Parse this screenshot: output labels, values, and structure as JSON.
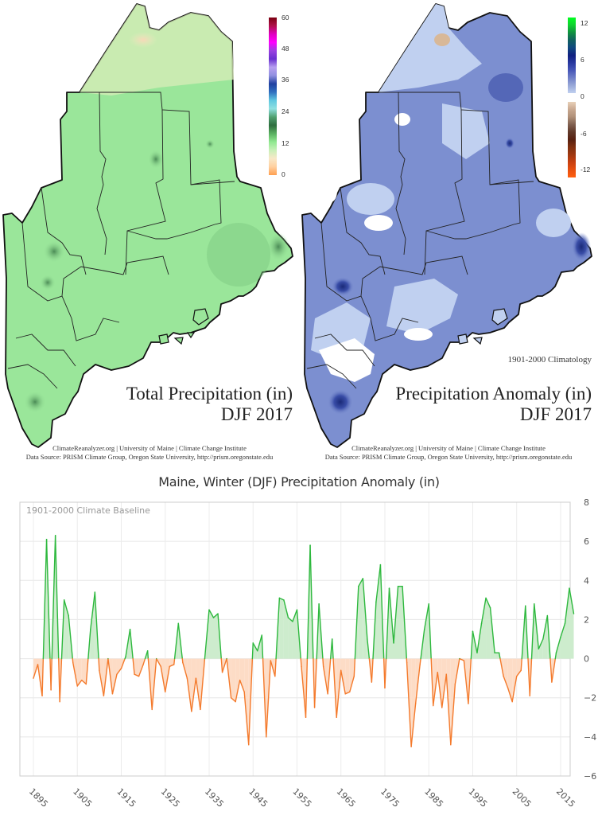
{
  "maps": {
    "left": {
      "title_line1": "Total Precipitation (in)",
      "title_line2": "DJF 2017",
      "colorbar": {
        "ticks": [
          "60",
          "48",
          "36",
          "24",
          "12",
          "0"
        ],
        "colors": [
          "#7a0010",
          "#b0104a",
          "#e000c0",
          "#ff00ff",
          "#9a40e0",
          "#6a30d0",
          "#b8a0f0",
          "#9090e0",
          "#2040a0",
          "#3070c0",
          "#60c8e0",
          "#90e0e0",
          "#50a070",
          "#2e6e40",
          "#5ab060",
          "#90e890",
          "#c8f0b8",
          "#f8e8c8",
          "#ffd0a0",
          "#ffa050"
        ]
      },
      "fill_color": "#9ae69a"
    },
    "right": {
      "title_line1": "Precipitation Anomaly (in)",
      "title_line2": "DJF 2017",
      "climatology_note": "1901-2000 Climatology",
      "colorbar": {
        "ticks": [
          "12",
          "6",
          "0",
          "-6",
          "-12"
        ],
        "pos_colors": [
          "#00ff20",
          "#10d030",
          "#109040",
          "#106060",
          "#104880",
          "#102080",
          "#2838a0",
          "#4858b8",
          "#7080c8",
          "#98a8d8",
          "#c0d0f0"
        ],
        "neg_colors": [
          "#e8d0b8",
          "#c8a890",
          "#b09078",
          "#806050",
          "#603828",
          "#582010",
          "#803010",
          "#a03810",
          "#c84010",
          "#e85010",
          "#ff6010"
        ]
      },
      "fill_color": "#7c8fd0"
    },
    "credit_line1": "ClimateReanalyzer.org | University of Maine | Climate Change Institute",
    "credit_line2": "Data Source: PRISM Climate Group, Oregon State University, http://prism.oregonstate.edu"
  },
  "chart_data": {
    "type": "area",
    "title": "Maine, Winter (DJF) Precipitation Anomaly (in)",
    "annotation": "1901-2000 Climate Baseline",
    "xlabel": "",
    "ylabel": "",
    "ylim": [
      -6,
      8
    ],
    "yticks": [
      8,
      6,
      4,
      2,
      0,
      -2,
      -4,
      -6
    ],
    "xticks": [
      1895,
      1905,
      1915,
      1925,
      1935,
      1945,
      1955,
      1965,
      1975,
      1985,
      1995,
      2005,
      2015
    ],
    "xlim": [
      1895,
      2017
    ],
    "grid": true,
    "positive_color": "#2db83d",
    "positive_fill": "#cdeccd",
    "negative_color": "#f47a2c",
    "negative_fill": "#fddcc6",
    "x_start": 1895,
    "values": [
      -1.0,
      -0.3,
      -1.9,
      6.1,
      -1.6,
      6.3,
      -2.2,
      3.0,
      2.2,
      -0.2,
      -1.4,
      -1.1,
      -1.3,
      1.5,
      3.4,
      -0.6,
      -1.9,
      0.0,
      -1.8,
      -0.8,
      -0.5,
      0.1,
      1.5,
      -0.8,
      -0.9,
      -0.3,
      0.4,
      -2.6,
      0.0,
      -0.4,
      -1.7,
      -0.4,
      -0.3,
      1.8,
      -0.2,
      -1.0,
      -2.7,
      -1.0,
      -2.6,
      0.0,
      2.5,
      2.1,
      2.3,
      -0.7,
      0.0,
      -2.0,
      -2.2,
      -1.1,
      -1.7,
      -4.4,
      0.8,
      0.4,
      1.2,
      -4.0,
      -0.1,
      -0.9,
      3.1,
      3.0,
      2.1,
      1.9,
      2.5,
      -0.4,
      -3.0,
      5.8,
      -2.5,
      2.8,
      -0.4,
      -1.8,
      1.0,
      -3.0,
      -0.6,
      -1.8,
      -1.7,
      -0.9,
      3.7,
      4.1,
      1.0,
      -1.2,
      2.9,
      4.8,
      -1.5,
      3.6,
      0.8,
      3.7,
      3.7,
      -0.2,
      -4.5,
      -2.3,
      -0.3,
      1.5,
      2.8,
      -2.4,
      -0.7,
      -2.5,
      -0.8,
      -4.4,
      -1.3,
      0.0,
      -0.1,
      -2.3,
      1.4,
      0.3,
      1.8,
      3.1,
      2.6,
      0.3,
      0.3,
      -0.9,
      -1.5,
      -2.2,
      -0.9,
      -0.6,
      2.7,
      -1.9,
      2.8,
      0.5,
      1.0,
      2.2,
      -1.2,
      0.3,
      1.1,
      1.8,
      3.6,
      2.3
    ]
  }
}
